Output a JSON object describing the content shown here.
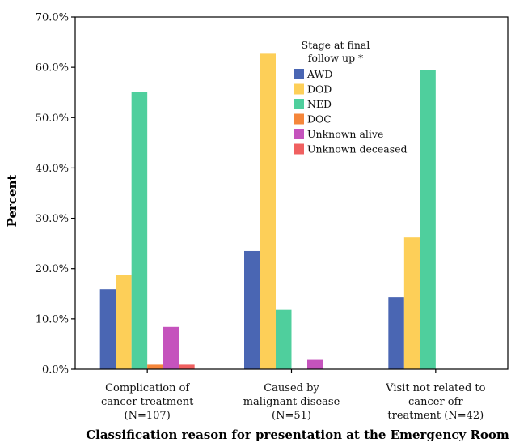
{
  "chart_data": {
    "type": "bar",
    "xlabel": "Classification reason for presentation at the Emergency Room",
    "ylabel": "Percent",
    "ylim": [
      0,
      70
    ],
    "yticks": [
      "0.0%",
      "10.0%",
      "20.0%",
      "30.0%",
      "40.0%",
      "50.0%",
      "60.0%",
      "70.0%"
    ],
    "categories": [
      [
        "Complication of",
        "cancer treatment",
        "(N=107)"
      ],
      [
        "Caused by",
        "malignant disease",
        "(N=51)"
      ],
      [
        "Visit not related to",
        "cancer ofr",
        "treatment (N=42)"
      ]
    ],
    "legend_title": [
      "Stage at final",
      "follow up *"
    ],
    "legend_position": "top-center",
    "grid": false,
    "series": [
      {
        "name": "AWD",
        "color": "#4a66b3",
        "values": [
          15.9,
          23.5,
          14.3
        ]
      },
      {
        "name": "DOD",
        "color": "#fdcf58",
        "values": [
          18.7,
          62.7,
          26.2
        ]
      },
      {
        "name": "NED",
        "color": "#4fcf9d",
        "values": [
          55.1,
          11.8,
          59.5
        ]
      },
      {
        "name": "DOC",
        "color": "#f5863a",
        "values": [
          0.9,
          0,
          0
        ]
      },
      {
        "name": "Unknown alive",
        "color": "#c553bd",
        "values": [
          8.4,
          2.0,
          0
        ]
      },
      {
        "name": "Unknown deceased",
        "color": "#f06060",
        "values": [
          0.9,
          0,
          0
        ]
      }
    ]
  }
}
